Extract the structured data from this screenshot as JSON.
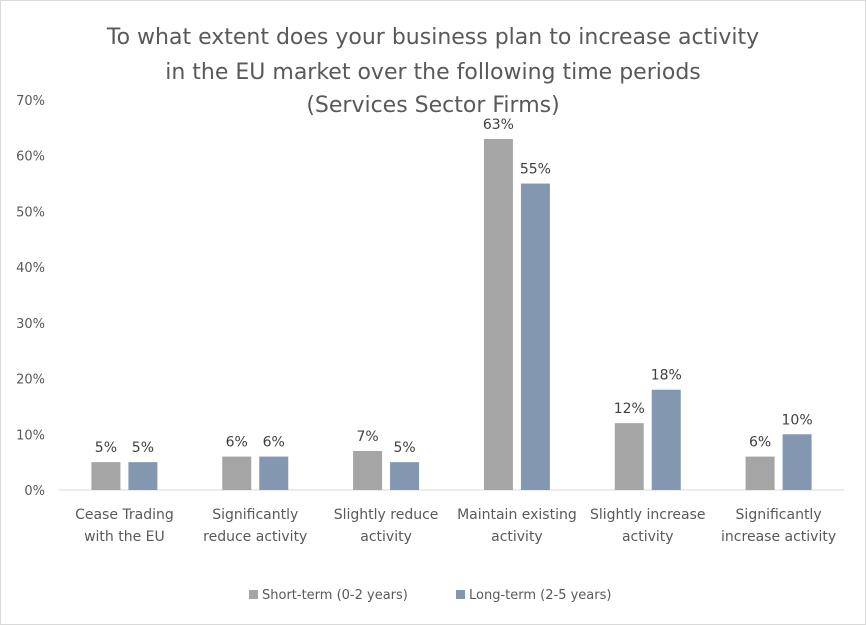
{
  "chart_data": {
    "type": "bar",
    "title": [
      "To what extent does your business plan to increase activity",
      "in the EU market over the following time periods",
      "(Services Sector Firms)"
    ],
    "categories": [
      [
        "Cease Trading",
        "with the EU"
      ],
      [
        "Significantly",
        "reduce activity"
      ],
      [
        "Slightly reduce",
        "activity"
      ],
      [
        "Maintain existing",
        "activity"
      ],
      [
        "Slightly increase",
        "activity"
      ],
      [
        "Significantly",
        "increase activity"
      ]
    ],
    "series": [
      {
        "name": "Short-term (0-2 years)",
        "color": "#a5a5a5",
        "values": [
          5,
          6,
          7,
          63,
          12,
          6
        ],
        "labels": [
          "5%",
          "6%",
          "7%",
          "63%",
          "12%",
          "6%"
        ]
      },
      {
        "name": "Long-term (2-5 years)",
        "color": "#8497b0",
        "values": [
          5,
          6,
          5,
          55,
          18,
          10
        ],
        "labels": [
          "5%",
          "6%",
          "5%",
          "55%",
          "18%",
          "10%"
        ]
      }
    ],
    "ylim": [
      0,
      70
    ],
    "yticks": [
      0,
      10,
      20,
      30,
      40,
      50,
      60,
      70
    ],
    "ytick_labels": [
      "0%",
      "10%",
      "20%",
      "30%",
      "40%",
      "50%",
      "60%",
      "70%"
    ],
    "xlabel": "",
    "ylabel": "",
    "grid": false,
    "legend_position": "bottom"
  }
}
